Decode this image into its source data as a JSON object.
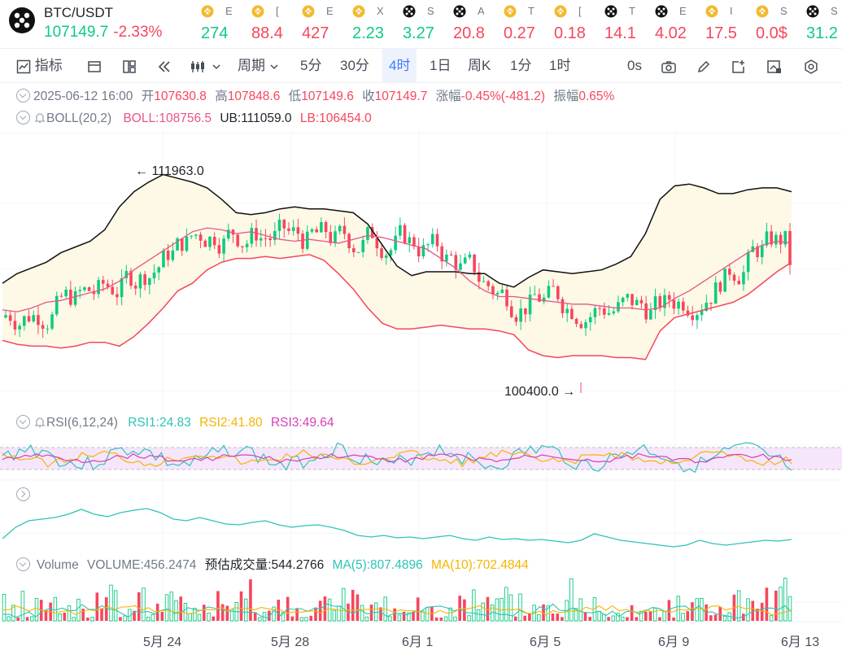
{
  "pair": {
    "name": "BTC/USDT",
    "price": "107149.7",
    "change": "-2.33%"
  },
  "tickers": [
    {
      "icon": "bnb-icon",
      "letter": "E",
      "value": "274",
      "dir": "up"
    },
    {
      "icon": "bnb-icon",
      "letter": "[",
      "value": "88.4",
      "dir": "down"
    },
    {
      "icon": "bnb-icon",
      "letter": "E",
      "value": "427",
      "dir": "down"
    },
    {
      "icon": "bnb-icon",
      "letter": "X",
      "value": "2.23",
      "dir": "up"
    },
    {
      "icon": "binance-icon",
      "letter": "S",
      "value": "3.27",
      "dir": "up"
    },
    {
      "icon": "binance-icon",
      "letter": "A",
      "value": "20.8",
      "dir": "down"
    },
    {
      "icon": "bnb-icon",
      "letter": "T",
      "value": "0.27",
      "dir": "down"
    },
    {
      "icon": "bnb-icon",
      "letter": "[",
      "value": "0.18",
      "dir": "down"
    },
    {
      "icon": "binance-icon",
      "letter": "T",
      "value": "14.1",
      "dir": "down"
    },
    {
      "icon": "binance-icon",
      "letter": "E",
      "value": "4.02",
      "dir": "down"
    },
    {
      "icon": "bnb-icon",
      "letter": "I",
      "value": "17.5",
      "dir": "down"
    },
    {
      "icon": "bnb-icon",
      "letter": "S",
      "value": "0.0$",
      "dir": "down"
    },
    {
      "icon": "binance-icon",
      "letter": "S",
      "value": "31.2",
      "dir": "up"
    }
  ],
  "toolbar": {
    "indicators": "指标",
    "period": "周期",
    "intervals": [
      "5分",
      "30分",
      "4时",
      "1日",
      "周K",
      "1分",
      "1时"
    ],
    "active_interval": "4时",
    "seconds": "0s"
  },
  "ohlc": {
    "date": "2025-06-12 16:00",
    "open_label": "开",
    "open": "107630.8",
    "high_label": "高",
    "high": "107848.6",
    "low_label": "低",
    "low": "107149.6",
    "close_label": "收",
    "close": "107149.7",
    "change_label": "涨幅",
    "change": "-0.45%(-481.2)",
    "amp_label": "振幅",
    "amp": "0.65%"
  },
  "boll": {
    "name": "BOLL(20,2)",
    "mid": "BOLL:108756.5",
    "ub": "UB:111059.0",
    "lb": "LB:106454.0"
  },
  "rsi": {
    "name": "RSI(6,12,24)",
    "rsi1": "RSI1:24.83",
    "rsi2": "RSI2:41.80",
    "rsi3": "RSI3:49.64"
  },
  "volume": {
    "name": "Volume",
    "vol": "VOLUME:456.2474",
    "est": "预估成交量:544.2766",
    "ma5": "MA(5):807.4896",
    "ma10": "MA(10):702.4844"
  },
  "annotations": {
    "high": "111963.0",
    "low": "100400.0"
  },
  "dates": [
    "5月 24",
    "5月 28",
    "6月 1",
    "6月 5",
    "6月 9",
    "6月 13"
  ],
  "colors": {
    "up": "#0ecb81",
    "down": "#f6465d",
    "boll_mid": "#e8548a",
    "band": "#fdf9e6",
    "rsi1": "#2ec4b6",
    "rsi2": "#f5b400",
    "rsi3": "#d63fb5",
    "accent": "#3a7bff"
  },
  "chart_data": {
    "type": "line",
    "title": "BTC/USDT",
    "series": [
      {
        "name": "BOLL",
        "values": [
          104800,
          104700,
          104900,
          105200,
          105300,
          105500,
          105700,
          105900,
          106300,
          106900,
          107400,
          107900,
          108400,
          108900,
          109100,
          109000,
          108800,
          108900,
          108700,
          108500,
          108400,
          108500,
          108400,
          108300,
          108500,
          108700,
          108600,
          108400,
          108200,
          108000,
          107500,
          107000,
          106300,
          105800,
          105500,
          105500,
          105400,
          105300,
          105200,
          105100,
          105100,
          105000,
          104900,
          104900,
          104800,
          104900,
          105400,
          105800,
          106300,
          106800,
          107300,
          107800,
          108200,
          108400,
          108300
        ]
      },
      {
        "name": "UB",
        "values": [
          106200,
          106700,
          107000,
          107300,
          107800,
          108100,
          108400,
          109000,
          110200,
          111000,
          111500,
          111900,
          111700,
          111500,
          111200,
          110600,
          109900,
          109800,
          109900,
          110100,
          110200,
          110100,
          110100,
          110000,
          109900,
          109300,
          108200,
          107100,
          106600,
          106800,
          106800,
          106800,
          106700,
          106700,
          106200,
          106000,
          106500,
          106900,
          106800,
          106700,
          106800,
          106900,
          107200,
          107600,
          108800,
          110600,
          111300,
          111400,
          111200,
          110900,
          110900,
          111100,
          111200,
          111200,
          111000
        ]
      },
      {
        "name": "LB",
        "values": [
          103200,
          103000,
          102900,
          102900,
          102800,
          102900,
          103100,
          103100,
          102900,
          103400,
          104100,
          104900,
          105800,
          106200,
          106900,
          107300,
          107500,
          107500,
          107600,
          107500,
          107600,
          107700,
          107400,
          106700,
          105900,
          104900,
          104100,
          103800,
          103800,
          103900,
          104000,
          103900,
          103800,
          103800,
          103700,
          103500,
          102700,
          102400,
          102300,
          102400,
          102400,
          102400,
          102300,
          102300,
          102200,
          103700,
          104400,
          104600,
          104800,
          105000,
          105200,
          105600,
          106200,
          106800,
          107300
        ]
      }
    ],
    "annotations": {
      "high": 111963.0,
      "low": 100400.0
    },
    "x_axis_ticks": [
      "5月 24",
      "5月 28",
      "6月 1",
      "6月 5",
      "6月 9",
      "6月 13"
    ],
    "last": {
      "open": 107630.8,
      "high": 107848.6,
      "low": 107149.6,
      "close": 107149.7
    },
    "rsi_last": {
      "rsi1": 24.83,
      "rsi2": 41.8,
      "rsi3": 49.64
    },
    "volume_last": {
      "volume": 456.2474,
      "estimated": 544.2766,
      "ma5": 807.4896,
      "ma10": 702.4844
    },
    "grid": true
  }
}
